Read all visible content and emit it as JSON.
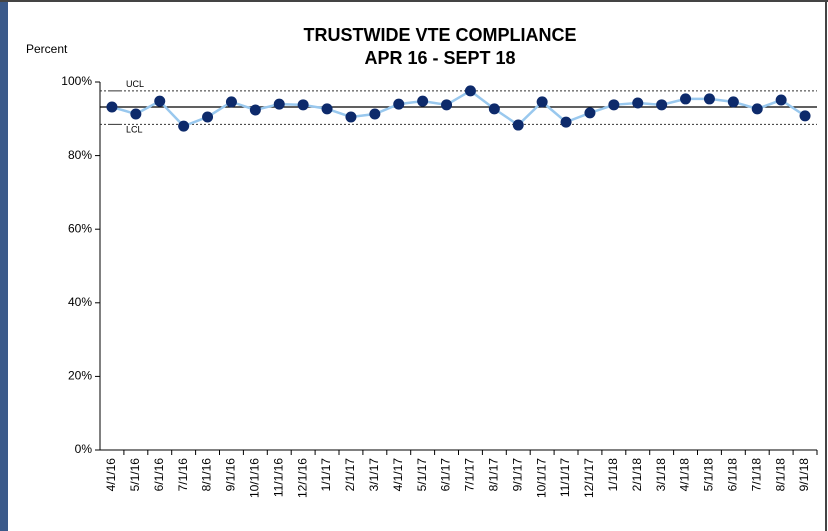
{
  "chart_data": {
    "type": "line",
    "title": "TRUSTWIDE VTE COMPLIANCE",
    "subtitle": "APR 16 - SEPT 18",
    "y_label": "Percent",
    "categories": [
      "4/1/16",
      "5/1/16",
      "6/1/16",
      "7/1/16",
      "8/1/16",
      "9/1/16",
      "10/1/16",
      "11/1/16",
      "12/1/16",
      "1/1/17",
      "2/1/17",
      "3/1/17",
      "4/1/17",
      "5/1/17",
      "6/1/17",
      "7/1/17",
      "8/1/17",
      "9/1/17",
      "10/1/17",
      "11/1/17",
      "12/1/17",
      "1/1/18",
      "2/1/18",
      "3/1/18",
      "4/1/18",
      "5/1/18",
      "6/1/18",
      "7/1/18",
      "8/1/18",
      "9/1/18"
    ],
    "values": [
      93.2,
      91.3,
      94.8,
      88.0,
      90.5,
      94.6,
      92.4,
      94.0,
      93.8,
      92.7,
      90.5,
      91.3,
      94.0,
      94.8,
      93.8,
      97.6,
      92.7,
      88.3,
      94.6,
      89.1,
      91.6,
      93.8,
      94.3,
      93.8,
      95.4,
      95.4,
      94.6,
      92.7,
      95.1,
      90.8
    ],
    "line_color": "#99c8ee",
    "marker_color": "#0d2a6b",
    "centre_line": 93.2,
    "ucl": {
      "label": "UCL",
      "value": 97.6
    },
    "lcl": {
      "label": "LCL",
      "value": 88.5
    },
    "ylim": [
      0,
      100
    ],
    "yticks": [
      {
        "value": 0,
        "label": "0%"
      },
      {
        "value": 20,
        "label": "20%"
      },
      {
        "value": 40,
        "label": "40%"
      },
      {
        "value": 60,
        "label": "60%"
      },
      {
        "value": 80,
        "label": "80%"
      },
      {
        "value": 100,
        "label": "100%"
      }
    ]
  }
}
